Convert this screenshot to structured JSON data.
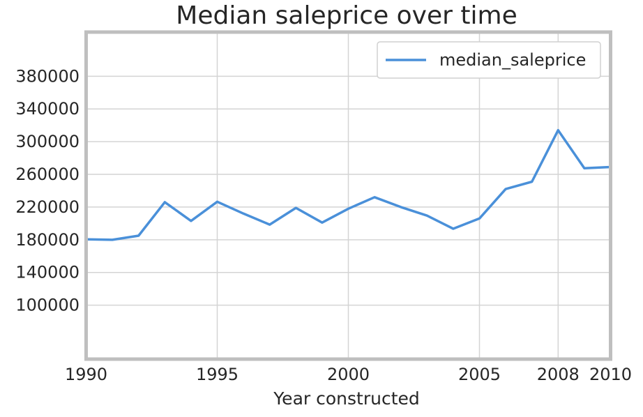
{
  "chart_data": {
    "type": "line",
    "title": "Median saleprice over time",
    "xlabel": "Year constructed",
    "ylabel": "",
    "xlim": [
      1990,
      2010
    ],
    "ylim": [
      34000,
      434000
    ],
    "xticks": [
      1990,
      1995,
      2000,
      2005,
      2008,
      2010
    ],
    "yticks": [
      100000,
      140000,
      180000,
      220000,
      260000,
      300000,
      340000,
      380000
    ],
    "grid": true,
    "legend_position": "top-right",
    "x": [
      1990,
      1991,
      1992,
      1993,
      1994,
      1995,
      1996,
      1997,
      1998,
      1999,
      2000,
      2001,
      2002,
      2003,
      2004,
      2005,
      2006,
      2007,
      2008,
      2009,
      2010
    ],
    "series": [
      {
        "name": "median_saleprice",
        "color": "#4a90d9",
        "values": [
          180500,
          179900,
          185000,
          226000,
          203000,
          226500,
          212000,
          198500,
          219000,
          201000,
          218000,
          232000,
          220000,
          209500,
          193500,
          206000,
          242000,
          251000,
          314000,
          267500,
          269000
        ]
      }
    ]
  }
}
